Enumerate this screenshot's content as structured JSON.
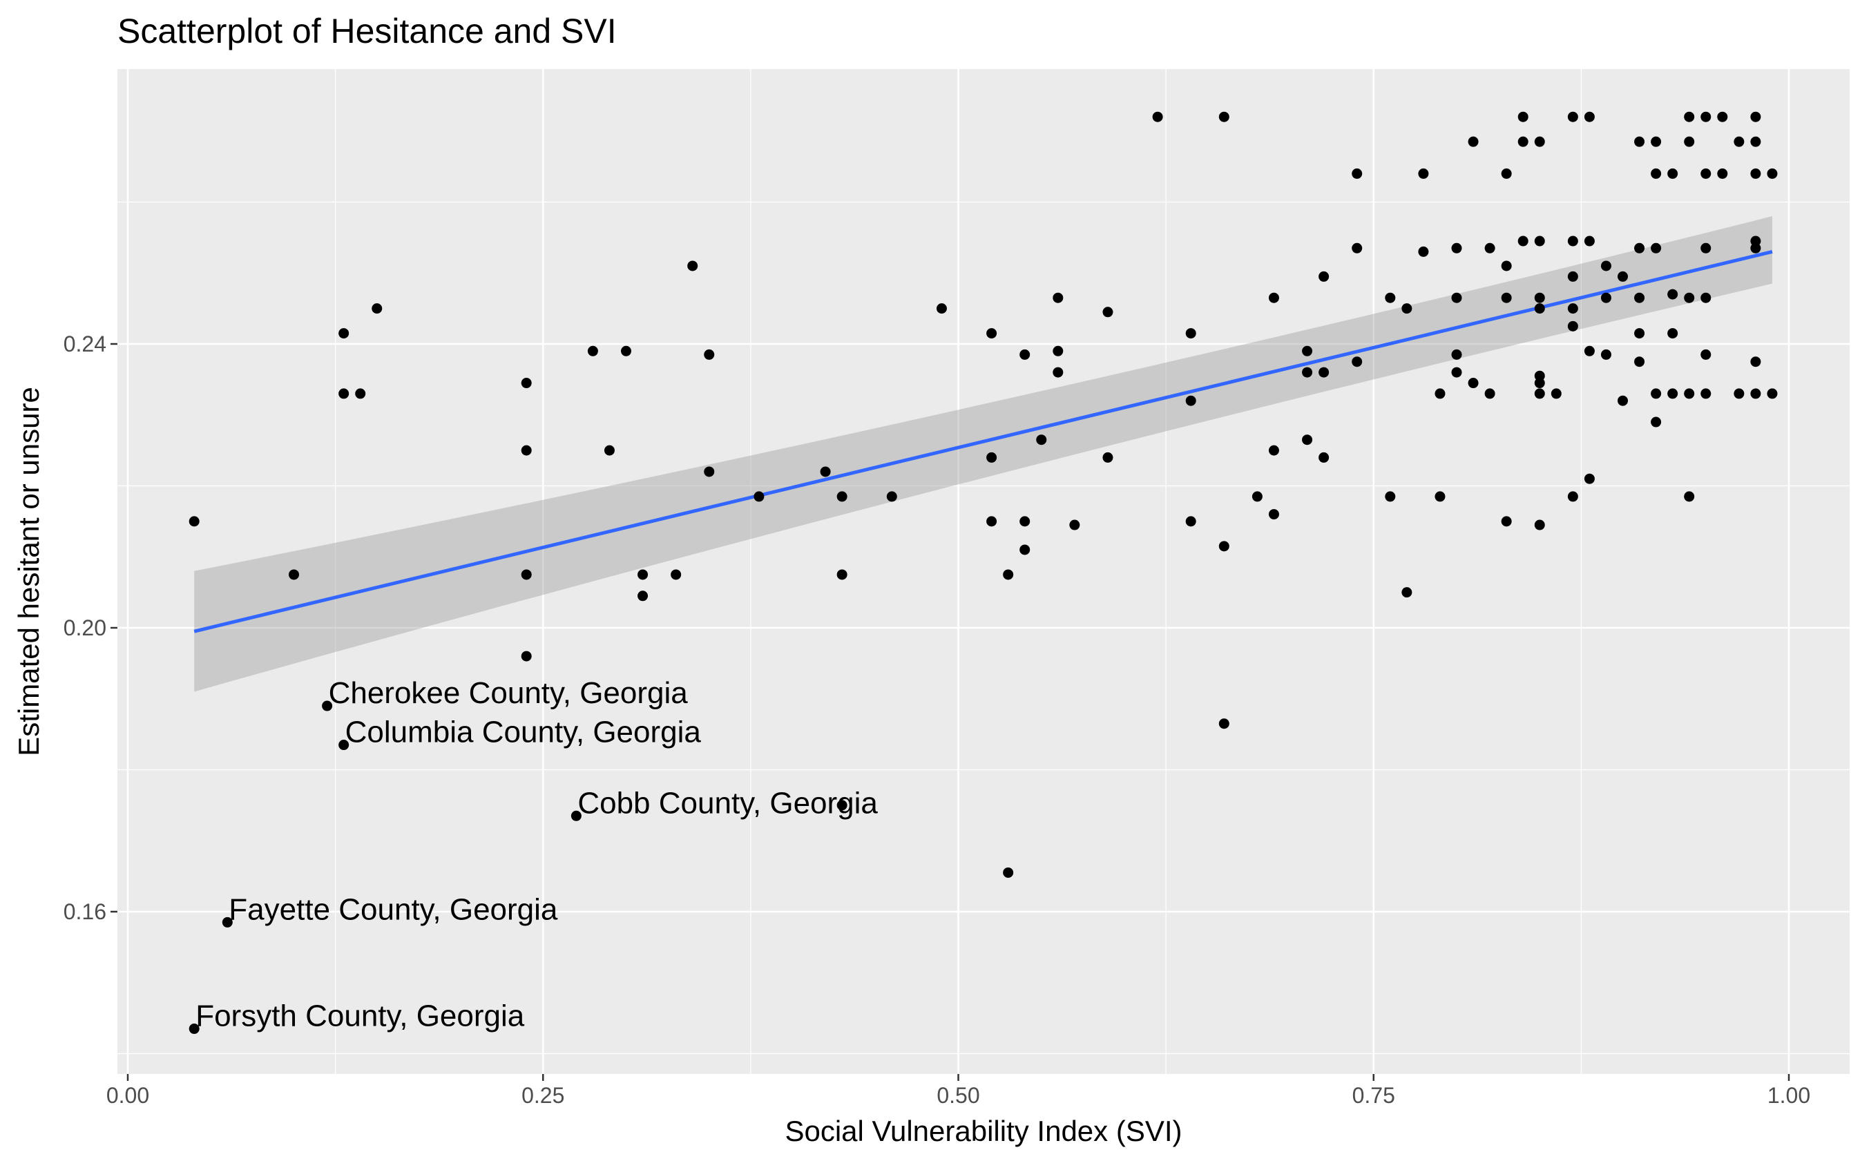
{
  "chart_data": {
    "type": "scatter",
    "title": "Scatterplot of Hesitance and SVI",
    "xlabel": "Social Vulnerability Index (SVI)",
    "ylabel": "Estimated hesitant or unsure",
    "xlim": [
      0.0,
      1.03
    ],
    "ylim": [
      0.1375,
      0.2785
    ],
    "x_ticks": [
      0.0,
      0.25,
      0.5,
      0.75,
      1.0
    ],
    "x_tick_labels": [
      "0.00",
      "0.25",
      "0.50",
      "0.75",
      "1.00"
    ],
    "y_ticks": [
      0.16,
      0.2,
      0.24
    ],
    "y_tick_labels": [
      "0.16",
      "0.20",
      "0.24"
    ],
    "grid": true,
    "colors": {
      "panel": "#ebebeb",
      "grid": "#ffffff",
      "point": "#000000",
      "fit_line": "#3366ff",
      "confidence_band": "#999999"
    },
    "regression": {
      "x_start": 0.04,
      "y_start": 0.1995,
      "x_end": 0.99,
      "y_end": 0.253,
      "band_start": [
        0.191,
        0.208
      ],
      "band_end": [
        0.2485,
        0.258
      ]
    },
    "annotations": [
      {
        "text": "Cherokee County, Georgia",
        "x": 0.12,
        "y": 0.189
      },
      {
        "text": "Columbia County, Georgia",
        "x": 0.13,
        "y": 0.1835
      },
      {
        "text": "Cobb County, Georgia",
        "x": 0.27,
        "y": 0.1735
      },
      {
        "text": "Fayette County, Georgia",
        "x": 0.06,
        "y": 0.1585
      },
      {
        "text": "Forsyth County, Georgia",
        "x": 0.04,
        "y": 0.1435
      }
    ],
    "points": [
      [
        0.04,
        0.215
      ],
      [
        0.04,
        0.1435
      ],
      [
        0.06,
        0.1585
      ],
      [
        0.1,
        0.2075
      ],
      [
        0.12,
        0.189
      ],
      [
        0.13,
        0.2415
      ],
      [
        0.13,
        0.233
      ],
      [
        0.13,
        0.1835
      ],
      [
        0.14,
        0.233
      ],
      [
        0.15,
        0.245
      ],
      [
        0.24,
        0.2345
      ],
      [
        0.24,
        0.225
      ],
      [
        0.24,
        0.2075
      ],
      [
        0.24,
        0.196
      ],
      [
        0.27,
        0.1735
      ],
      [
        0.28,
        0.239
      ],
      [
        0.29,
        0.225
      ],
      [
        0.3,
        0.239
      ],
      [
        0.31,
        0.2075
      ],
      [
        0.31,
        0.2045
      ],
      [
        0.33,
        0.2075
      ],
      [
        0.34,
        0.251
      ],
      [
        0.35,
        0.2385
      ],
      [
        0.35,
        0.222
      ],
      [
        0.38,
        0.2185
      ],
      [
        0.42,
        0.222
      ],
      [
        0.43,
        0.2185
      ],
      [
        0.43,
        0.2075
      ],
      [
        0.43,
        0.175
      ],
      [
        0.46,
        0.2185
      ],
      [
        0.49,
        0.245
      ],
      [
        0.52,
        0.2415
      ],
      [
        0.52,
        0.224
      ],
      [
        0.52,
        0.215
      ],
      [
        0.53,
        0.2075
      ],
      [
        0.53,
        0.1655
      ],
      [
        0.54,
        0.2385
      ],
      [
        0.54,
        0.215
      ],
      [
        0.54,
        0.211
      ],
      [
        0.55,
        0.2265
      ],
      [
        0.56,
        0.2465
      ],
      [
        0.56,
        0.239
      ],
      [
        0.56,
        0.236
      ],
      [
        0.57,
        0.2145
      ],
      [
        0.59,
        0.2445
      ],
      [
        0.59,
        0.224
      ],
      [
        0.62,
        0.272
      ],
      [
        0.64,
        0.2415
      ],
      [
        0.64,
        0.232
      ],
      [
        0.64,
        0.215
      ],
      [
        0.66,
        0.272
      ],
      [
        0.66,
        0.2115
      ],
      [
        0.66,
        0.1865
      ],
      [
        0.68,
        0.2185
      ],
      [
        0.69,
        0.2465
      ],
      [
        0.69,
        0.225
      ],
      [
        0.69,
        0.216
      ],
      [
        0.71,
        0.239
      ],
      [
        0.71,
        0.236
      ],
      [
        0.71,
        0.2265
      ],
      [
        0.72,
        0.2495
      ],
      [
        0.72,
        0.236
      ],
      [
        0.72,
        0.224
      ],
      [
        0.74,
        0.264
      ],
      [
        0.74,
        0.2535
      ],
      [
        0.74,
        0.2375
      ],
      [
        0.76,
        0.2465
      ],
      [
        0.76,
        0.2185
      ],
      [
        0.77,
        0.245
      ],
      [
        0.77,
        0.205
      ],
      [
        0.78,
        0.264
      ],
      [
        0.78,
        0.253
      ],
      [
        0.79,
        0.233
      ],
      [
        0.79,
        0.2185
      ],
      [
        0.8,
        0.2535
      ],
      [
        0.8,
        0.2465
      ],
      [
        0.8,
        0.2385
      ],
      [
        0.8,
        0.236
      ],
      [
        0.81,
        0.2685
      ],
      [
        0.81,
        0.2345
      ],
      [
        0.82,
        0.2535
      ],
      [
        0.82,
        0.233
      ],
      [
        0.83,
        0.264
      ],
      [
        0.83,
        0.251
      ],
      [
        0.83,
        0.2465
      ],
      [
        0.83,
        0.215
      ],
      [
        0.84,
        0.272
      ],
      [
        0.84,
        0.2685
      ],
      [
        0.84,
        0.2545
      ],
      [
        0.85,
        0.2685
      ],
      [
        0.85,
        0.2545
      ],
      [
        0.85,
        0.2465
      ],
      [
        0.85,
        0.245
      ],
      [
        0.85,
        0.2355
      ],
      [
        0.85,
        0.2345
      ],
      [
        0.85,
        0.233
      ],
      [
        0.85,
        0.2145
      ],
      [
        0.86,
        0.233
      ],
      [
        0.87,
        0.272
      ],
      [
        0.87,
        0.2545
      ],
      [
        0.87,
        0.2495
      ],
      [
        0.87,
        0.245
      ],
      [
        0.87,
        0.2425
      ],
      [
        0.87,
        0.2185
      ],
      [
        0.88,
        0.272
      ],
      [
        0.88,
        0.2545
      ],
      [
        0.88,
        0.239
      ],
      [
        0.88,
        0.221
      ],
      [
        0.89,
        0.251
      ],
      [
        0.89,
        0.2465
      ],
      [
        0.89,
        0.2385
      ],
      [
        0.9,
        0.2495
      ],
      [
        0.9,
        0.232
      ],
      [
        0.91,
        0.2685
      ],
      [
        0.91,
        0.2535
      ],
      [
        0.91,
        0.2465
      ],
      [
        0.91,
        0.2415
      ],
      [
        0.91,
        0.2375
      ],
      [
        0.92,
        0.2685
      ],
      [
        0.92,
        0.264
      ],
      [
        0.92,
        0.2535
      ],
      [
        0.92,
        0.233
      ],
      [
        0.92,
        0.229
      ],
      [
        0.93,
        0.264
      ],
      [
        0.93,
        0.247
      ],
      [
        0.93,
        0.2415
      ],
      [
        0.93,
        0.233
      ],
      [
        0.94,
        0.272
      ],
      [
        0.94,
        0.2685
      ],
      [
        0.94,
        0.2465
      ],
      [
        0.94,
        0.233
      ],
      [
        0.94,
        0.2185
      ],
      [
        0.95,
        0.272
      ],
      [
        0.95,
        0.264
      ],
      [
        0.95,
        0.2535
      ],
      [
        0.95,
        0.2465
      ],
      [
        0.95,
        0.2385
      ],
      [
        0.95,
        0.233
      ],
      [
        0.96,
        0.272
      ],
      [
        0.96,
        0.264
      ],
      [
        0.97,
        0.2685
      ],
      [
        0.97,
        0.233
      ],
      [
        0.98,
        0.272
      ],
      [
        0.98,
        0.2685
      ],
      [
        0.98,
        0.264
      ],
      [
        0.98,
        0.2545
      ],
      [
        0.98,
        0.2535
      ],
      [
        0.98,
        0.2375
      ],
      [
        0.98,
        0.233
      ],
      [
        0.99,
        0.264
      ],
      [
        0.99,
        0.233
      ]
    ]
  }
}
